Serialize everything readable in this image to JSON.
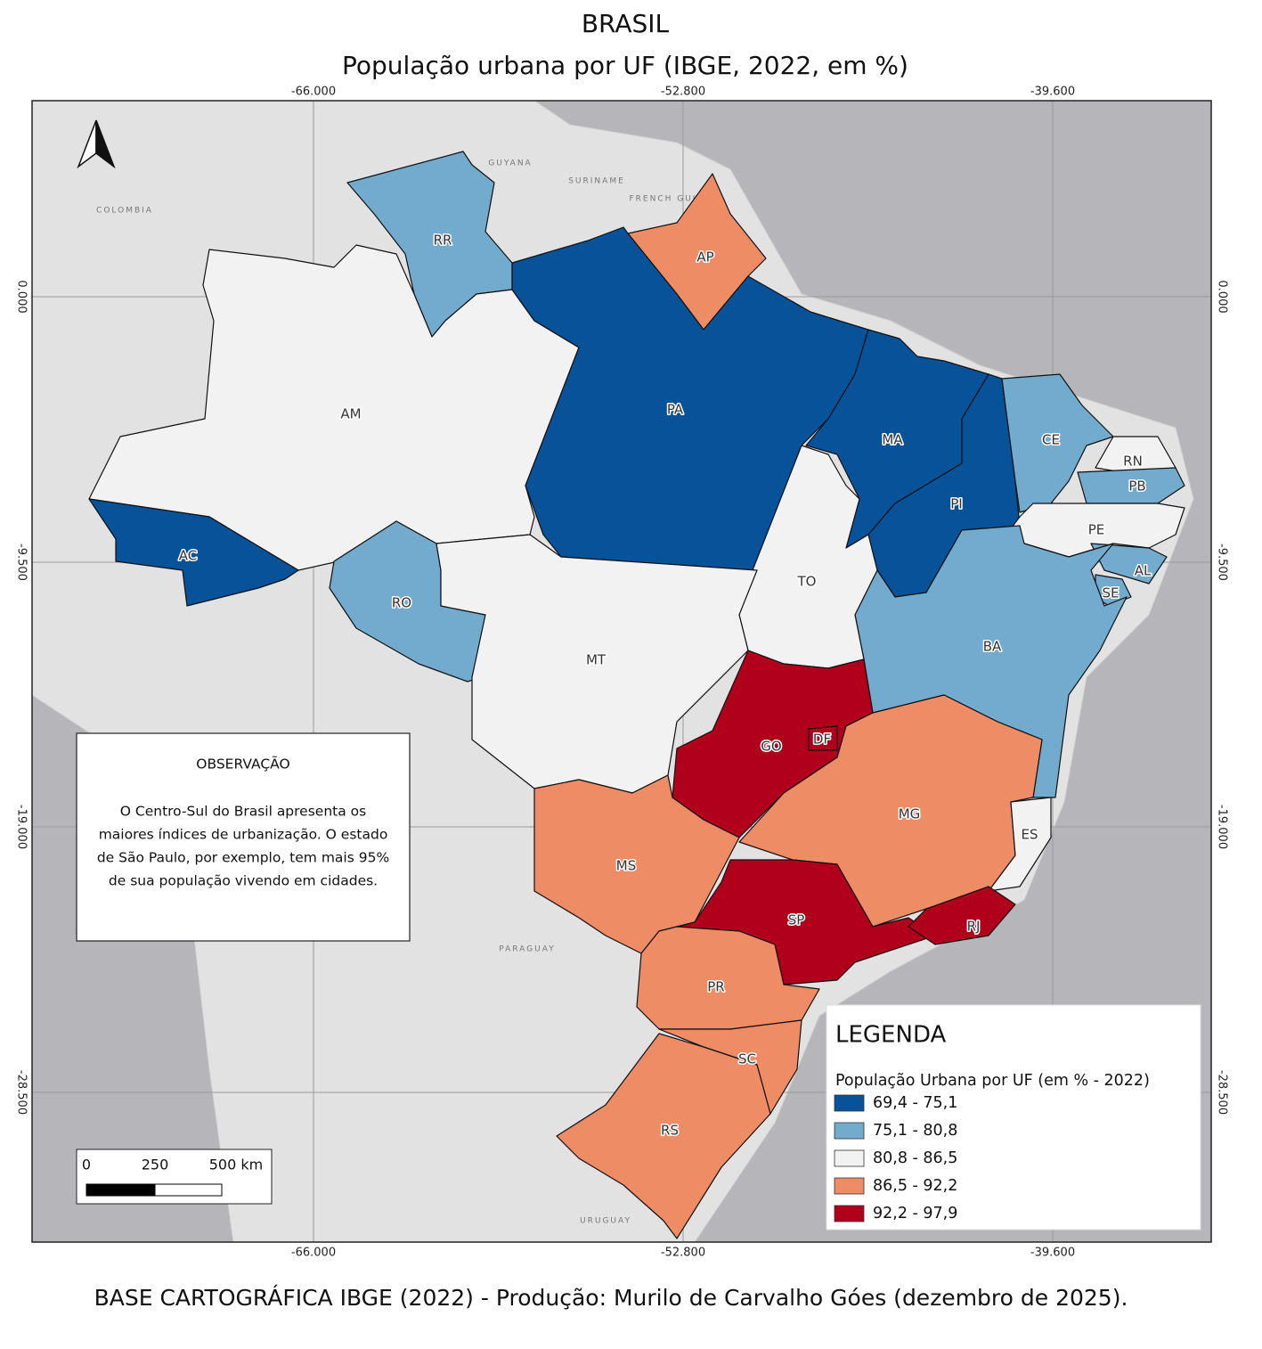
{
  "title": "BRASIL",
  "subtitle": "População urbana por UF (IBGE, 2022, em %)",
  "footer": "BASE CARTOGRÁFICA IBGE (2022) - Produção: Murilo de Carvalho Góes (dezembro de 2025).",
  "graticule": {
    "lon_labels": [
      "-66.000",
      "-52.800",
      "-39.600"
    ],
    "lat_labels": [
      "0.000",
      "-9.500",
      "-19.000",
      "-28.500"
    ]
  },
  "countries": [
    "COLOMBIA",
    "GUYANA",
    "SURINAME",
    "FRENCH GUIANA",
    "PARAGUAY",
    "URUGUAY"
  ],
  "observation": {
    "title": "OBSERVAÇÃO",
    "lines": [
      "O Centro-Sul do Brasil apresenta os",
      "maiores índices de urbanização. O estado",
      "de São Paulo, por exemplo, tem mais 95%",
      "de sua população vivendo em cidades."
    ]
  },
  "legend": {
    "title": "LEGENDA",
    "subtitle": "População Urbana por UF (em % - 2022)",
    "items": [
      {
        "label": "69,4 - 75,1",
        "color": "#08529a"
      },
      {
        "label": "75,1 - 80,8",
        "color": "#72abcd"
      },
      {
        "label": "80,8 - 86,5",
        "color": "#f2f2f2"
      },
      {
        "label": "86,5 - 92,2",
        "color": "#ee8c65"
      },
      {
        "label": "92,2 - 97,9",
        "color": "#b0001c"
      }
    ]
  },
  "scale_bar": {
    "labels": [
      "0",
      "250",
      "500 km"
    ]
  },
  "states": [
    {
      "label": "RR",
      "color": "#72abcd"
    },
    {
      "label": "AP",
      "color": "#ee8c65"
    },
    {
      "label": "AM",
      "color": "#f2f2f2"
    },
    {
      "label": "AC",
      "color": "#08529a"
    },
    {
      "label": "RO",
      "color": "#72abcd"
    },
    {
      "label": "PA",
      "color": "#08529a"
    },
    {
      "label": "MA",
      "color": "#08529a"
    },
    {
      "label": "PI",
      "color": "#08529a"
    },
    {
      "label": "CE",
      "color": "#72abcd"
    },
    {
      "label": "RN",
      "color": "#f2f2f2"
    },
    {
      "label": "PB",
      "color": "#72abcd"
    },
    {
      "label": "PE",
      "color": "#f2f2f2"
    },
    {
      "label": "AL",
      "color": "#72abcd"
    },
    {
      "label": "SE",
      "color": "#72abcd"
    },
    {
      "label": "BA",
      "color": "#72abcd"
    },
    {
      "label": "TO",
      "color": "#f2f2f2"
    },
    {
      "label": "MT",
      "color": "#f2f2f2"
    },
    {
      "label": "GO",
      "color": "#b0001c"
    },
    {
      "label": "DF",
      "color": "#b0001c"
    },
    {
      "label": "MG",
      "color": "#ee8c65"
    },
    {
      "label": "ES",
      "color": "#f2f2f2"
    },
    {
      "label": "MS",
      "color": "#ee8c65"
    },
    {
      "label": "SP",
      "color": "#b0001c"
    },
    {
      "label": "RJ",
      "color": "#b0001c"
    },
    {
      "label": "PR",
      "color": "#ee8c65"
    },
    {
      "label": "SC",
      "color": "#ee8c65"
    },
    {
      "label": "RS",
      "color": "#ee8c65"
    }
  ]
}
